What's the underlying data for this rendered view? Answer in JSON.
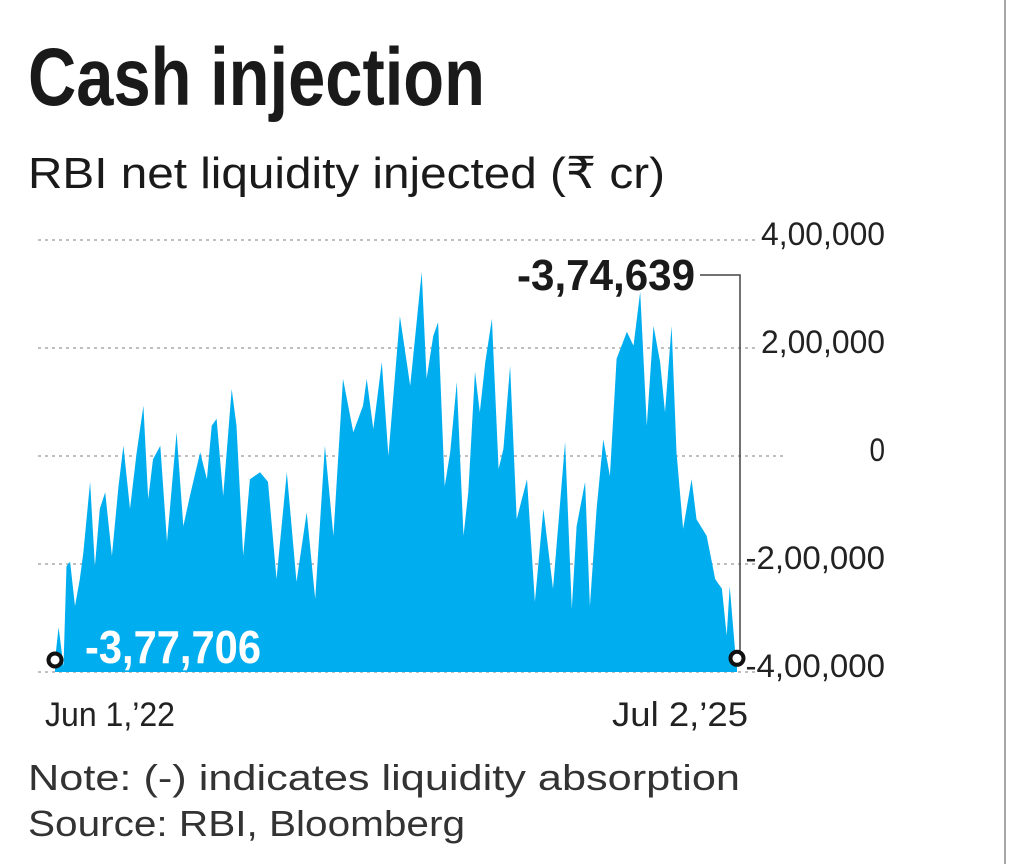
{
  "chart_data": {
    "type": "area",
    "title": "Cash injection",
    "subtitle": "RBI net liquidity injected (₹ cr)",
    "ylim": [
      -400000,
      400000
    ],
    "yticks": [
      400000,
      200000,
      0,
      -200000,
      -400000
    ],
    "ytick_labels": [
      "4,00,000",
      "2,00,000",
      "0",
      "-2,00,000",
      "-4,00,000"
    ],
    "xlim": [
      "2022-06-01",
      "2025-07-02"
    ],
    "xtick_labels": [
      "Jun 1,’22",
      "Jul 2,’25"
    ],
    "grid": true,
    "fill_color": "#00AEEF",
    "annotations": {
      "start_label": "-3,77,706",
      "end_label": "-3,74,639"
    },
    "points": [
      [
        "2022-06-01",
        -377706
      ],
      [
        "2022-06-07",
        -317000
      ],
      [
        "2022-06-15",
        -389000
      ],
      [
        "2022-06-20",
        -204000
      ],
      [
        "2022-06-26",
        -196000
      ],
      [
        "2022-07-04",
        -278000
      ],
      [
        "2022-07-12",
        -228000
      ],
      [
        "2022-07-18",
        -178000
      ],
      [
        "2022-07-29",
        -48000
      ],
      [
        "2022-08-06",
        -204000
      ],
      [
        "2022-08-14",
        -98000
      ],
      [
        "2022-08-23",
        -67000
      ],
      [
        "2022-09-03",
        -185000
      ],
      [
        "2022-09-14",
        -56000
      ],
      [
        "2022-09-22",
        19000
      ],
      [
        "2022-10-03",
        -98000
      ],
      [
        "2022-10-14",
        7000
      ],
      [
        "2022-10-25",
        93000
      ],
      [
        "2022-11-02",
        -80000
      ],
      [
        "2022-11-10",
        -6000
      ],
      [
        "2022-11-22",
        19000
      ],
      [
        "2022-12-03",
        -159000
      ],
      [
        "2022-12-19",
        44000
      ],
      [
        "2022-12-30",
        -130000
      ],
      [
        "2023-01-10",
        -74000
      ],
      [
        "2023-01-27",
        7000
      ],
      [
        "2023-02-07",
        -43000
      ],
      [
        "2023-02-15",
        56000
      ],
      [
        "2023-02-23",
        69000
      ],
      [
        "2023-03-06",
        -74000
      ],
      [
        "2023-03-20",
        124000
      ],
      [
        "2023-03-28",
        56000
      ],
      [
        "2023-04-08",
        -185000
      ],
      [
        "2023-04-19",
        -43000
      ],
      [
        "2023-05-06",
        -30000
      ],
      [
        "2023-05-19",
        -48000
      ],
      [
        "2023-06-02",
        -228000
      ],
      [
        "2023-06-19",
        -30000
      ],
      [
        "2023-07-05",
        -233000
      ],
      [
        "2023-07-22",
        -104000
      ],
      [
        "2023-08-05",
        -265000
      ],
      [
        "2023-08-21",
        19000
      ],
      [
        "2023-09-04",
        -148000
      ],
      [
        "2023-09-20",
        143000
      ],
      [
        "2023-10-07",
        44000
      ],
      [
        "2023-10-23",
        93000
      ],
      [
        "2023-10-29",
        143000
      ],
      [
        "2023-11-09",
        50000
      ],
      [
        "2023-11-23",
        174000
      ],
      [
        "2023-12-04",
        0
      ],
      [
        "2023-12-23",
        259000
      ],
      [
        "2024-01-09",
        130000
      ],
      [
        "2024-01-28",
        341000
      ],
      [
        "2024-02-05",
        143000
      ],
      [
        "2024-02-16",
        222000
      ],
      [
        "2024-02-24",
        248000
      ],
      [
        "2024-03-06",
        -56000
      ],
      [
        "2024-03-15",
        7000
      ],
      [
        "2024-03-26",
        137000
      ],
      [
        "2024-04-06",
        -148000
      ],
      [
        "2024-04-14",
        -67000
      ],
      [
        "2024-04-25",
        156000
      ],
      [
        "2024-05-03",
        81000
      ],
      [
        "2024-05-12",
        174000
      ],
      [
        "2024-05-23",
        254000
      ],
      [
        "2024-06-03",
        -24000
      ],
      [
        "2024-06-11",
        13000
      ],
      [
        "2024-06-22",
        167000
      ],
      [
        "2024-07-03",
        -117000
      ],
      [
        "2024-07-20",
        -43000
      ],
      [
        "2024-08-02",
        -270000
      ],
      [
        "2024-08-16",
        -98000
      ],
      [
        "2024-09-01",
        -246000
      ],
      [
        "2024-09-21",
        26000
      ],
      [
        "2024-10-02",
        -283000
      ],
      [
        "2024-10-10",
        -130000
      ],
      [
        "2024-10-24",
        -48000
      ],
      [
        "2024-11-01",
        -278000
      ],
      [
        "2024-11-12",
        -98000
      ],
      [
        "2024-11-23",
        31000
      ],
      [
        "2024-12-04",
        -37000
      ],
      [
        "2024-12-15",
        180000
      ],
      [
        "2025-01-01",
        230000
      ],
      [
        "2025-01-12",
        204000
      ],
      [
        "2025-01-23",
        304000
      ],
      [
        "2025-02-03",
        56000
      ],
      [
        "2025-02-14",
        241000
      ],
      [
        "2025-02-25",
        174000
      ],
      [
        "2025-03-05",
        81000
      ],
      [
        "2025-03-16",
        241000
      ],
      [
        "2025-03-24",
        7000
      ],
      [
        "2025-04-04",
        -135000
      ],
      [
        "2025-04-18",
        -43000
      ],
      [
        "2025-04-26",
        -117000
      ],
      [
        "2025-05-13",
        -148000
      ],
      [
        "2025-05-27",
        -228000
      ],
      [
        "2025-06-07",
        -246000
      ],
      [
        "2025-06-15",
        -333000
      ],
      [
        "2025-06-20",
        -241000
      ],
      [
        "2025-06-29",
        -363000
      ],
      [
        "2025-07-02",
        -374639
      ]
    ]
  },
  "footer": {
    "note": "Note: (-) indicates liquidity absorption",
    "source": "Source: RBI, Bloomberg"
  }
}
